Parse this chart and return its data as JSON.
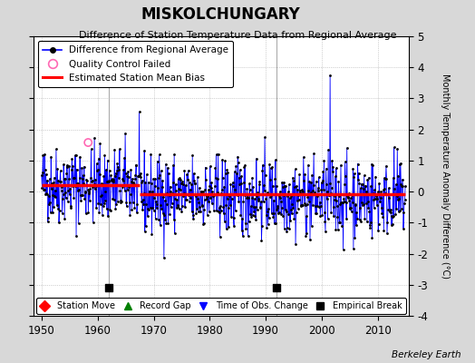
{
  "title": "MISKOLCHUNGARY",
  "subtitle": "Difference of Station Temperature Data from Regional Average",
  "ylabel": "Monthly Temperature Anomaly Difference (°C)",
  "xlabel_years": [
    1950,
    1960,
    1970,
    1980,
    1990,
    2000,
    2010
  ],
  "ylim": [
    -4,
    5
  ],
  "xlim": [
    1948.5,
    2015.5
  ],
  "yticks": [
    -4,
    -3,
    -2,
    -1,
    0,
    1,
    2,
    3,
    4,
    5
  ],
  "fig_bg_color": "#d8d8d8",
  "plot_bg_color": "#ffffff",
  "line_color": "#0000ff",
  "dot_color": "#000000",
  "bias_color": "#ff0000",
  "bias_value_1": 0.22,
  "bias_value_2": -0.08,
  "bias_change_year": 1967.5,
  "empirical_break_years": [
    1962,
    1992
  ],
  "qc_failed_year": 1958.3,
  "qc_failed_value": 1.58,
  "spike_year": 2001,
  "spike_value": 3.75,
  "seed": 42,
  "footer_text": "Berkeley Earth",
  "data_start": 1950,
  "data_end": 2015,
  "noise_std": 0.62
}
